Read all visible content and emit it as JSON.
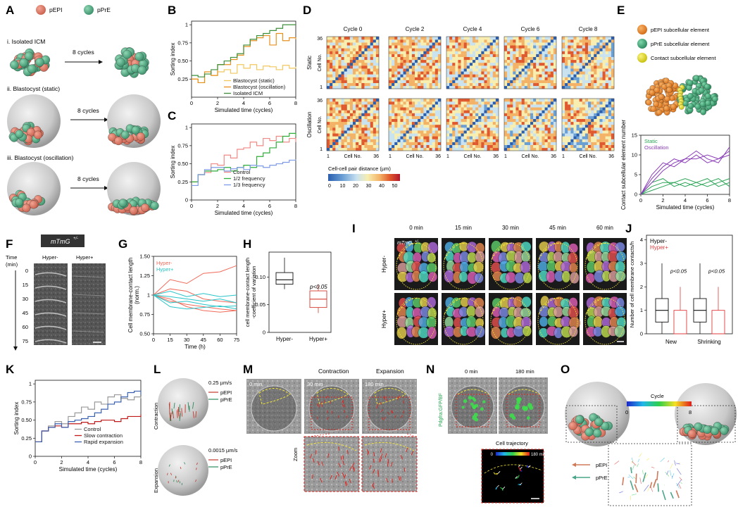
{
  "panels": {
    "A": "A",
    "B": "B",
    "C": "C",
    "D": "D",
    "E": "E",
    "F": "F",
    "G": "G",
    "H": "H",
    "I": "I",
    "J": "J",
    "K": "K",
    "L": "L",
    "M": "M",
    "N": "N",
    "O": "O"
  },
  "legend": {
    "pEPI": "pEPI",
    "pPrE": "pPrE"
  },
  "panelA": {
    "rows": [
      {
        "title": "i. Isolated ICM",
        "arrow": "8 cycles"
      },
      {
        "title": "ii. Blastocyst  (static)",
        "arrow": "8 cycles"
      },
      {
        "title": "iii. Blastocyst  (oscillation)",
        "arrow": "8 cycles"
      }
    ]
  },
  "panelD": {
    "cycles": [
      "Cycle 0",
      "Cycle 2",
      "Cycle 4",
      "Cycle 6",
      "Cycle 8"
    ],
    "rowlabels": [
      "Static",
      "Oscillation"
    ],
    "ylabel": "Cell No.",
    "xlabel": "Cell No.",
    "tick_top": "36",
    "tick_bottom": "1",
    "tick_left": "1",
    "tick_right": "36",
    "cbar_title": "Cell-cell pair distance (µm)",
    "cbar_ticks": [
      "0",
      "10",
      "20",
      "30",
      "40",
      "50"
    ],
    "cbar_colors": [
      "#2b5fae",
      "#6a9fd4",
      "#c9e2f0",
      "#f7eeb0",
      "#f3b266",
      "#e0582d",
      "#b2182b"
    ]
  },
  "panelE": {
    "items": [
      "pEPI subcellular element",
      "pPrE subcellular element",
      "Contact subcellular element"
    ],
    "item_colors": [
      "#e87f24",
      "#3aa878",
      "#e3de1c"
    ]
  },
  "panelF": {
    "badge": "mTmG",
    "badge_sup": "+/-",
    "time_label": "Time",
    "time_unit": "(min)",
    "times": [
      "0",
      "15",
      "30",
      "45",
      "60",
      "75"
    ],
    "cols": [
      "Hyper-",
      "Hyper+"
    ]
  },
  "panelH": {
    "pval": "p<0.05",
    "ylabel": "cell membrane-contact length",
    "ylabel2": "-coefficient of variation",
    "yticks": [
      "0",
      "0.05",
      "0.10"
    ],
    "cats": [
      "Hyper-",
      "Hyper+"
    ]
  },
  "panelI": {
    "times": [
      "0 min",
      "15 min",
      "30 min",
      "45 min",
      "60 min"
    ],
    "badge": "mTmG",
    "badge_sup": "+/-",
    "rows": [
      "Hyper-",
      "Hyper+"
    ]
  },
  "panelJ": {
    "legend": [
      "Hyper-",
      "Hyper+"
    ],
    "pvals": [
      "p<0.05",
      "p<0.05"
    ],
    "cats": [
      "New",
      "Shrinking"
    ],
    "ylabel": "Number of cell membrane contacts/h",
    "yticks": [
      "0",
      "1",
      "2",
      "3",
      "4"
    ]
  },
  "panelL": {
    "labels": [
      "Contraction",
      "Expansion"
    ],
    "speeds": [
      "0.25 µm/s",
      "0.0015 µm/s"
    ]
  },
  "panelM": {
    "labels": [
      "0 min",
      "30 min",
      "180 min"
    ],
    "headers": [
      "Contraction",
      "Expansion"
    ],
    "zoom": "Zoom"
  },
  "panelN": {
    "labels": [
      "0 min",
      "180 min"
    ],
    "side": "Pdgfra:GFP/BF",
    "traj": "Cell trajectory",
    "traj_scale_start": "0",
    "traj_scale_end": "180 min"
  },
  "panelO": {
    "cycle_label": "Cycle",
    "cycle_min": "0",
    "cycle_max": "8"
  },
  "chart_data": [
    {
      "panel": "B",
      "type": "line",
      "xlabel": "Simulated time (cycles)",
      "ylabel": "Sorting index",
      "xlim": [
        0,
        8
      ],
      "ylim": [
        0,
        1.05
      ],
      "xticks": [
        0,
        2,
        4,
        6,
        8
      ],
      "yticks": [
        0.25,
        0.5,
        0.75,
        1.0
      ],
      "legend_position": "bottom-right",
      "series": [
        {
          "name": "Blastocyst (static)",
          "color": "#f2c75c",
          "x": [
            0,
            0.5,
            1,
            1.5,
            2,
            2.5,
            3,
            3.5,
            4,
            4.5,
            5,
            5.5,
            6,
            6.5,
            7,
            7.5,
            8
          ],
          "y": [
            0.25,
            0.2,
            0.32,
            0.3,
            0.35,
            0.38,
            0.33,
            0.45,
            0.4,
            0.45,
            0.38,
            0.43,
            0.42,
            0.38,
            0.44,
            0.4,
            0.42
          ]
        },
        {
          "name": "Blastocyst (oscillation)",
          "color": "#e8901e",
          "x": [
            0,
            0.5,
            1,
            1.5,
            2,
            2.5,
            3,
            3.5,
            4,
            4.5,
            5,
            5.5,
            6,
            6.5,
            7,
            7.5,
            8
          ],
          "y": [
            0.25,
            0.2,
            0.35,
            0.3,
            0.45,
            0.45,
            0.52,
            0.58,
            0.7,
            0.78,
            0.82,
            0.85,
            0.72,
            0.88,
            0.78,
            0.82,
            0.8
          ]
        },
        {
          "name": "Isolated ICM",
          "color": "#3d8f3a",
          "x": [
            0,
            0.5,
            1,
            1.5,
            2,
            2.5,
            3,
            3.5,
            4,
            4.5,
            5,
            5.5,
            6,
            6.5,
            7,
            7.5,
            8
          ],
          "y": [
            0.3,
            0.28,
            0.32,
            0.38,
            0.45,
            0.5,
            0.55,
            0.6,
            0.72,
            0.8,
            0.85,
            0.88,
            0.92,
            0.95,
            1.0,
            1.0,
            1.0
          ]
        }
      ]
    },
    {
      "panel": "C",
      "type": "line",
      "xlabel": "Simulated time (cycles)",
      "ylabel": "Sorting index",
      "xlim": [
        0,
        8
      ],
      "ylim": [
        0,
        1.05
      ],
      "xticks": [
        0,
        2,
        4,
        6,
        8
      ],
      "yticks": [
        0,
        0.25,
        0.5,
        0.75,
        1.0
      ],
      "legend_position": "bottom-right",
      "series": [
        {
          "name": "Control",
          "color": "#f08a86",
          "x": [
            0,
            0.5,
            1,
            1.5,
            2,
            2.5,
            3,
            3.5,
            4,
            4.5,
            5,
            5.5,
            6,
            6.5,
            7,
            7.5,
            8
          ],
          "y": [
            0.25,
            0.35,
            0.38,
            0.5,
            0.48,
            0.62,
            0.58,
            0.7,
            0.72,
            0.8,
            0.75,
            0.85,
            0.82,
            0.88,
            0.8,
            0.85,
            0.8
          ]
        },
        {
          "name": "1/2 frequency",
          "color": "#2fae3a",
          "x": [
            0,
            0.5,
            1,
            1.5,
            2,
            2.5,
            3,
            3.5,
            4,
            4.5,
            5,
            5.5,
            6,
            6.5,
            7,
            7.5,
            8
          ],
          "y": [
            0.25,
            0.35,
            0.4,
            0.4,
            0.42,
            0.45,
            0.4,
            0.45,
            0.48,
            0.45,
            0.6,
            0.65,
            0.72,
            0.8,
            0.88,
            0.92,
            0.88
          ]
        },
        {
          "name": "1/3 frequency",
          "color": "#7e9be6",
          "x": [
            0,
            0.5,
            1,
            1.5,
            2,
            2.5,
            3,
            3.5,
            4,
            4.5,
            5,
            5.5,
            6,
            6.5,
            7,
            7.5,
            8
          ],
          "y": [
            0.2,
            0.35,
            0.42,
            0.45,
            0.45,
            0.4,
            0.43,
            0.45,
            0.42,
            0.48,
            0.47,
            0.45,
            0.48,
            0.5,
            0.52,
            0.55,
            0.56
          ]
        }
      ]
    },
    {
      "panel": "E",
      "type": "line",
      "xlabel": "Simulated time (cycles)",
      "ylabel": "Contact subcellular element number",
      "xlim": [
        0,
        8
      ],
      "ylim": [
        0,
        15
      ],
      "xticks": [
        0,
        2,
        4,
        6,
        8
      ],
      "yticks": [
        0,
        5,
        10,
        15
      ],
      "legend_position": "top-left",
      "series": [
        {
          "name": "Static",
          "color": "#2aa455",
          "x": [
            0,
            1,
            2,
            3,
            4,
            5,
            6,
            7,
            8
          ],
          "y": [
            0,
            2,
            3,
            3,
            2,
            3,
            4,
            2,
            3
          ]
        },
        {
          "name": "",
          "color": "#2aa455",
          "x": [
            0,
            1,
            2,
            3,
            4,
            5,
            6,
            7,
            8
          ],
          "y": [
            0,
            3,
            4,
            2,
            3,
            2,
            3,
            4,
            2
          ]
        },
        {
          "name": "",
          "color": "#2aa455",
          "x": [
            0,
            1,
            2,
            3,
            4,
            5,
            6,
            7,
            8
          ],
          "y": [
            0,
            1,
            2,
            3,
            4,
            3,
            2,
            3,
            4
          ]
        },
        {
          "name": "Oscillation",
          "color": "#8a3db8",
          "x": [
            0,
            1,
            2,
            3,
            4,
            5,
            6,
            7,
            8
          ],
          "y": [
            0,
            4,
            7,
            9,
            8,
            10,
            8,
            9,
            11
          ]
        },
        {
          "name": "",
          "color": "#8a3db8",
          "x": [
            0,
            1,
            2,
            3,
            4,
            5,
            6,
            7,
            8
          ],
          "y": [
            0,
            5,
            8,
            7,
            9,
            11,
            9,
            8,
            12
          ]
        },
        {
          "name": "",
          "color": "#8a3db8",
          "x": [
            0,
            1,
            2,
            3,
            4,
            5,
            6,
            7,
            8
          ],
          "y": [
            0,
            3,
            6,
            8,
            9,
            9,
            10,
            9,
            10
          ]
        }
      ]
    },
    {
      "panel": "G",
      "type": "line",
      "xlabel": "Time (h)",
      "ylabel": "Cell membrane-contact length",
      "ylabel2": "(norm.)",
      "xlim": [
        0,
        75
      ],
      "ylim": [
        0.5,
        1.5
      ],
      "xticks": [
        0,
        15,
        30,
        45,
        60,
        75
      ],
      "yticks": [
        0.5,
        0.75,
        1.0,
        1.25,
        1.5
      ],
      "legend_position": "top-left",
      "series": [
        {
          "name": "Hyper-",
          "color": "#f06a5a",
          "x": [
            0,
            15,
            30,
            45,
            60,
            75
          ],
          "y": [
            1.0,
            1.2,
            1.15,
            1.28,
            1.3,
            1.38
          ]
        },
        {
          "name": "",
          "color": "#f06a5a",
          "x": [
            0,
            15,
            30,
            45,
            60,
            75
          ],
          "y": [
            1.0,
            1.08,
            1.05,
            0.95,
            0.92,
            0.9
          ]
        },
        {
          "name": "",
          "color": "#f06a5a",
          "x": [
            0,
            15,
            30,
            45,
            60,
            75
          ],
          "y": [
            1.0,
            0.92,
            0.88,
            0.85,
            0.82,
            0.8
          ]
        },
        {
          "name": "",
          "color": "#f06a5a",
          "x": [
            0,
            15,
            30,
            45,
            60,
            75
          ],
          "y": [
            1.0,
            0.95,
            0.85,
            0.8,
            0.78,
            0.8
          ]
        },
        {
          "name": "Hyper+",
          "color": "#28c4c8",
          "x": [
            0,
            15,
            30,
            45,
            60,
            75
          ],
          "y": [
            1.0,
            1.05,
            0.98,
            1.02,
            0.98,
            1.0
          ]
        },
        {
          "name": "",
          "color": "#28c4c8",
          "x": [
            0,
            15,
            30,
            45,
            60,
            75
          ],
          "y": [
            1.0,
            0.98,
            0.95,
            0.92,
            0.95,
            0.9
          ]
        },
        {
          "name": "",
          "color": "#28c4c8",
          "x": [
            0,
            15,
            30,
            45,
            60,
            75
          ],
          "y": [
            1.0,
            0.9,
            0.92,
            0.88,
            0.85,
            0.86
          ]
        },
        {
          "name": "",
          "color": "#28c4c8",
          "x": [
            0,
            15,
            30,
            45,
            60,
            75
          ],
          "y": [
            1.0,
            0.85,
            0.82,
            0.84,
            0.86,
            0.82
          ]
        }
      ]
    },
    {
      "panel": "K",
      "type": "line",
      "xlabel": "Simulated time (cycles)",
      "ylabel": "Sorting index",
      "xlim": [
        0,
        8
      ],
      "ylim": [
        0,
        1.05
      ],
      "xticks": [
        0,
        2,
        4,
        6,
        8
      ],
      "yticks": [
        0,
        0.25,
        0.5,
        0.75,
        1.0
      ],
      "legend_position": "bottom-right",
      "series": [
        {
          "name": "Control",
          "color": "#9a9a9a",
          "x": [
            0,
            0.5,
            1,
            1.5,
            2,
            2.5,
            3,
            3.5,
            4,
            4.5,
            5,
            5.5,
            6,
            6.5,
            7,
            7.5,
            8
          ],
          "y": [
            0.2,
            0.35,
            0.42,
            0.48,
            0.45,
            0.55,
            0.6,
            0.68,
            0.65,
            0.75,
            0.72,
            0.82,
            0.85,
            0.8,
            0.78,
            0.82,
            0.8
          ]
        },
        {
          "name": "Slow contraction",
          "color": "#c01a1a",
          "x": [
            0,
            0.5,
            1,
            1.5,
            2,
            2.5,
            3,
            3.5,
            4,
            4.5,
            5,
            5.5,
            6,
            6.5,
            7,
            7.5,
            8
          ],
          "y": [
            0.2,
            0.35,
            0.4,
            0.42,
            0.4,
            0.45,
            0.45,
            0.47,
            0.45,
            0.48,
            0.5,
            0.5,
            0.48,
            0.52,
            0.55,
            0.55,
            0.58
          ]
        },
        {
          "name": "Rapid expansion",
          "color": "#3a60b0",
          "x": [
            0,
            0.5,
            1,
            1.5,
            2,
            2.5,
            3,
            3.5,
            4,
            4.5,
            5,
            5.5,
            6,
            6.5,
            7,
            7.5,
            8
          ],
          "y": [
            0.2,
            0.35,
            0.4,
            0.45,
            0.4,
            0.48,
            0.5,
            0.52,
            0.55,
            0.6,
            0.65,
            0.72,
            0.75,
            0.82,
            0.88,
            0.9,
            0.85
          ]
        }
      ]
    }
  ]
}
